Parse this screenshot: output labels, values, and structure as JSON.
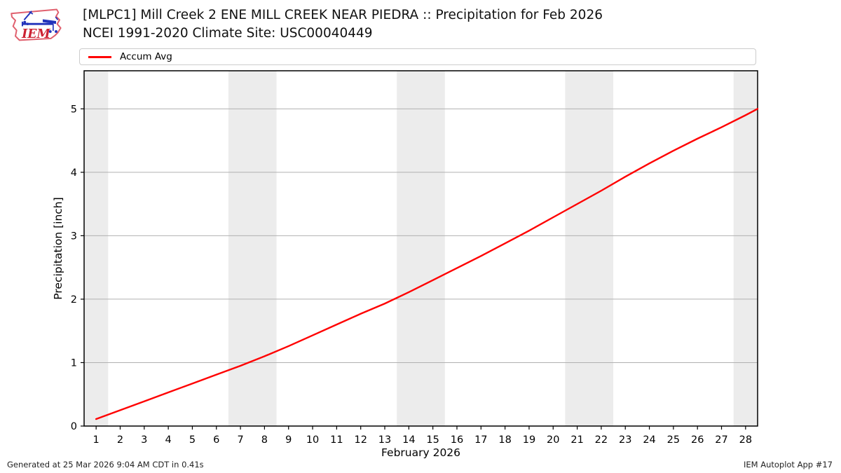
{
  "header": {
    "logo_text": "IEM",
    "title_line1": "[MLPC1] Mill Creek 2 ENE MILL CREEK NEAR PIEDRA :: Precipitation for Feb 2026",
    "title_line2": "NCEI 1991-2020 Climate Site: USC00040449"
  },
  "legend": {
    "items": [
      {
        "label": "Accum Avg",
        "color": "#ff0000"
      }
    ]
  },
  "footer": {
    "left": "Generated at 25 Mar 2026 9:04 AM CDT in 0.41s",
    "right": "IEM Autoplot App #17"
  },
  "chart_data": {
    "type": "line",
    "title": "[MLPC1] Mill Creek 2 ENE MILL CREEK NEAR PIEDRA :: Precipitation for Feb 2026",
    "subtitle": "NCEI 1991-2020 Climate Site: USC00040449",
    "xlabel": "February 2026",
    "ylabel": "Precipitation [inch]",
    "xlim": [
      0.5,
      28.5
    ],
    "ylim": [
      0,
      5.6
    ],
    "xticks": [
      1,
      2,
      3,
      4,
      5,
      6,
      7,
      8,
      9,
      10,
      11,
      12,
      13,
      14,
      15,
      16,
      17,
      18,
      19,
      20,
      21,
      22,
      23,
      24,
      25,
      26,
      27,
      28
    ],
    "yticks": [
      0,
      1,
      2,
      3,
      4,
      5
    ],
    "grid": "horizontal",
    "grid_color": "#b0b0b0",
    "band_color": "#ececec",
    "weekend_bands": [
      [
        0.5,
        1.5
      ],
      [
        6.5,
        8.5
      ],
      [
        13.5,
        15.5
      ],
      [
        20.5,
        22.5
      ],
      [
        27.5,
        28.5
      ]
    ],
    "legend_position": "top",
    "series": [
      {
        "name": "Accum Avg",
        "color": "#ff0000",
        "x": [
          1,
          2,
          3,
          4,
          5,
          6,
          7,
          8,
          9,
          10,
          11,
          12,
          13,
          14,
          15,
          16,
          17,
          18,
          19,
          20,
          21,
          22,
          23,
          24,
          25,
          26,
          27,
          28,
          28.5
        ],
        "y": [
          0.11,
          0.25,
          0.39,
          0.53,
          0.67,
          0.81,
          0.95,
          1.1,
          1.26,
          1.43,
          1.6,
          1.77,
          1.93,
          2.11,
          2.3,
          2.49,
          2.68,
          2.88,
          3.08,
          3.29,
          3.5,
          3.71,
          3.93,
          4.14,
          4.34,
          4.53,
          4.71,
          4.9,
          5.0
        ]
      }
    ]
  }
}
